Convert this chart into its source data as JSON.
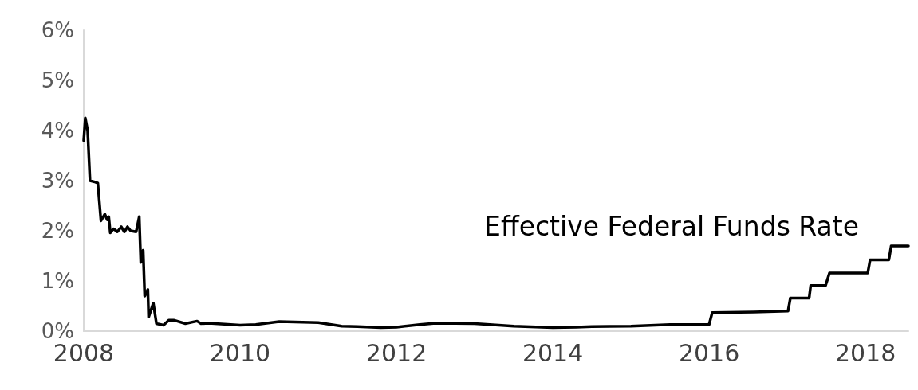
{
  "chart_data": {
    "type": "line",
    "xlim": [
      2008,
      2018.55
    ],
    "xticks": [
      2008,
      2010,
      2012,
      2014,
      2016,
      2018
    ],
    "ylim": [
      0,
      6
    ],
    "yticks": [
      {
        "value": 0,
        "label": "0%"
      },
      {
        "value": 1,
        "label": "1%"
      },
      {
        "value": 2,
        "label": "2%"
      },
      {
        "value": 3,
        "label": "3%"
      },
      {
        "value": 4,
        "label": "4%"
      },
      {
        "value": 5,
        "label": "5%"
      },
      {
        "value": 6,
        "label": "6%"
      }
    ],
    "grid": false,
    "legend": false,
    "marker": "none",
    "line_style": "solid",
    "x": [
      2008.0,
      2008.02,
      2008.05,
      2008.08,
      2008.15,
      2008.18,
      2008.22,
      2008.27,
      2008.3,
      2008.32,
      2008.34,
      2008.38,
      2008.43,
      2008.48,
      2008.52,
      2008.56,
      2008.6,
      2008.67,
      2008.71,
      2008.73,
      2008.76,
      2008.78,
      2008.82,
      2008.83,
      2008.89,
      2008.93,
      2009.02,
      2009.09,
      2009.15,
      2009.3,
      2009.45,
      2009.5,
      2009.6,
      2010.0,
      2010.2,
      2010.5,
      2011.0,
      2011.3,
      2011.5,
      2011.8,
      2012.0,
      2012.3,
      2012.5,
      2013.0,
      2013.5,
      2014.0,
      2014.3,
      2014.5,
      2015.0,
      2015.5,
      2015.95,
      2016.0,
      2016.04,
      2016.57,
      2017.01,
      2017.04,
      2017.28,
      2017.3,
      2017.49,
      2017.54,
      2018.03,
      2018.06,
      2018.3,
      2018.33,
      2018.55
    ],
    "series": [
      {
        "name": "Effective Federal Funds Rate",
        "color": "#000000",
        "values": [
          3.8,
          4.25,
          4.0,
          3.0,
          2.97,
          2.95,
          2.2,
          2.33,
          2.22,
          2.28,
          1.96,
          2.04,
          1.98,
          2.08,
          1.98,
          2.08,
          2.0,
          1.98,
          2.28,
          1.37,
          1.61,
          0.7,
          0.83,
          0.28,
          0.56,
          0.15,
          0.12,
          0.22,
          0.22,
          0.15,
          0.2,
          0.15,
          0.16,
          0.12,
          0.13,
          0.19,
          0.17,
          0.1,
          0.09,
          0.07,
          0.08,
          0.13,
          0.16,
          0.15,
          0.1,
          0.07,
          0.08,
          0.09,
          0.1,
          0.13,
          0.13,
          0.13,
          0.37,
          0.38,
          0.4,
          0.66,
          0.66,
          0.91,
          0.91,
          1.16,
          1.16,
          1.42,
          1.42,
          1.7,
          1.7
        ]
      }
    ]
  }
}
